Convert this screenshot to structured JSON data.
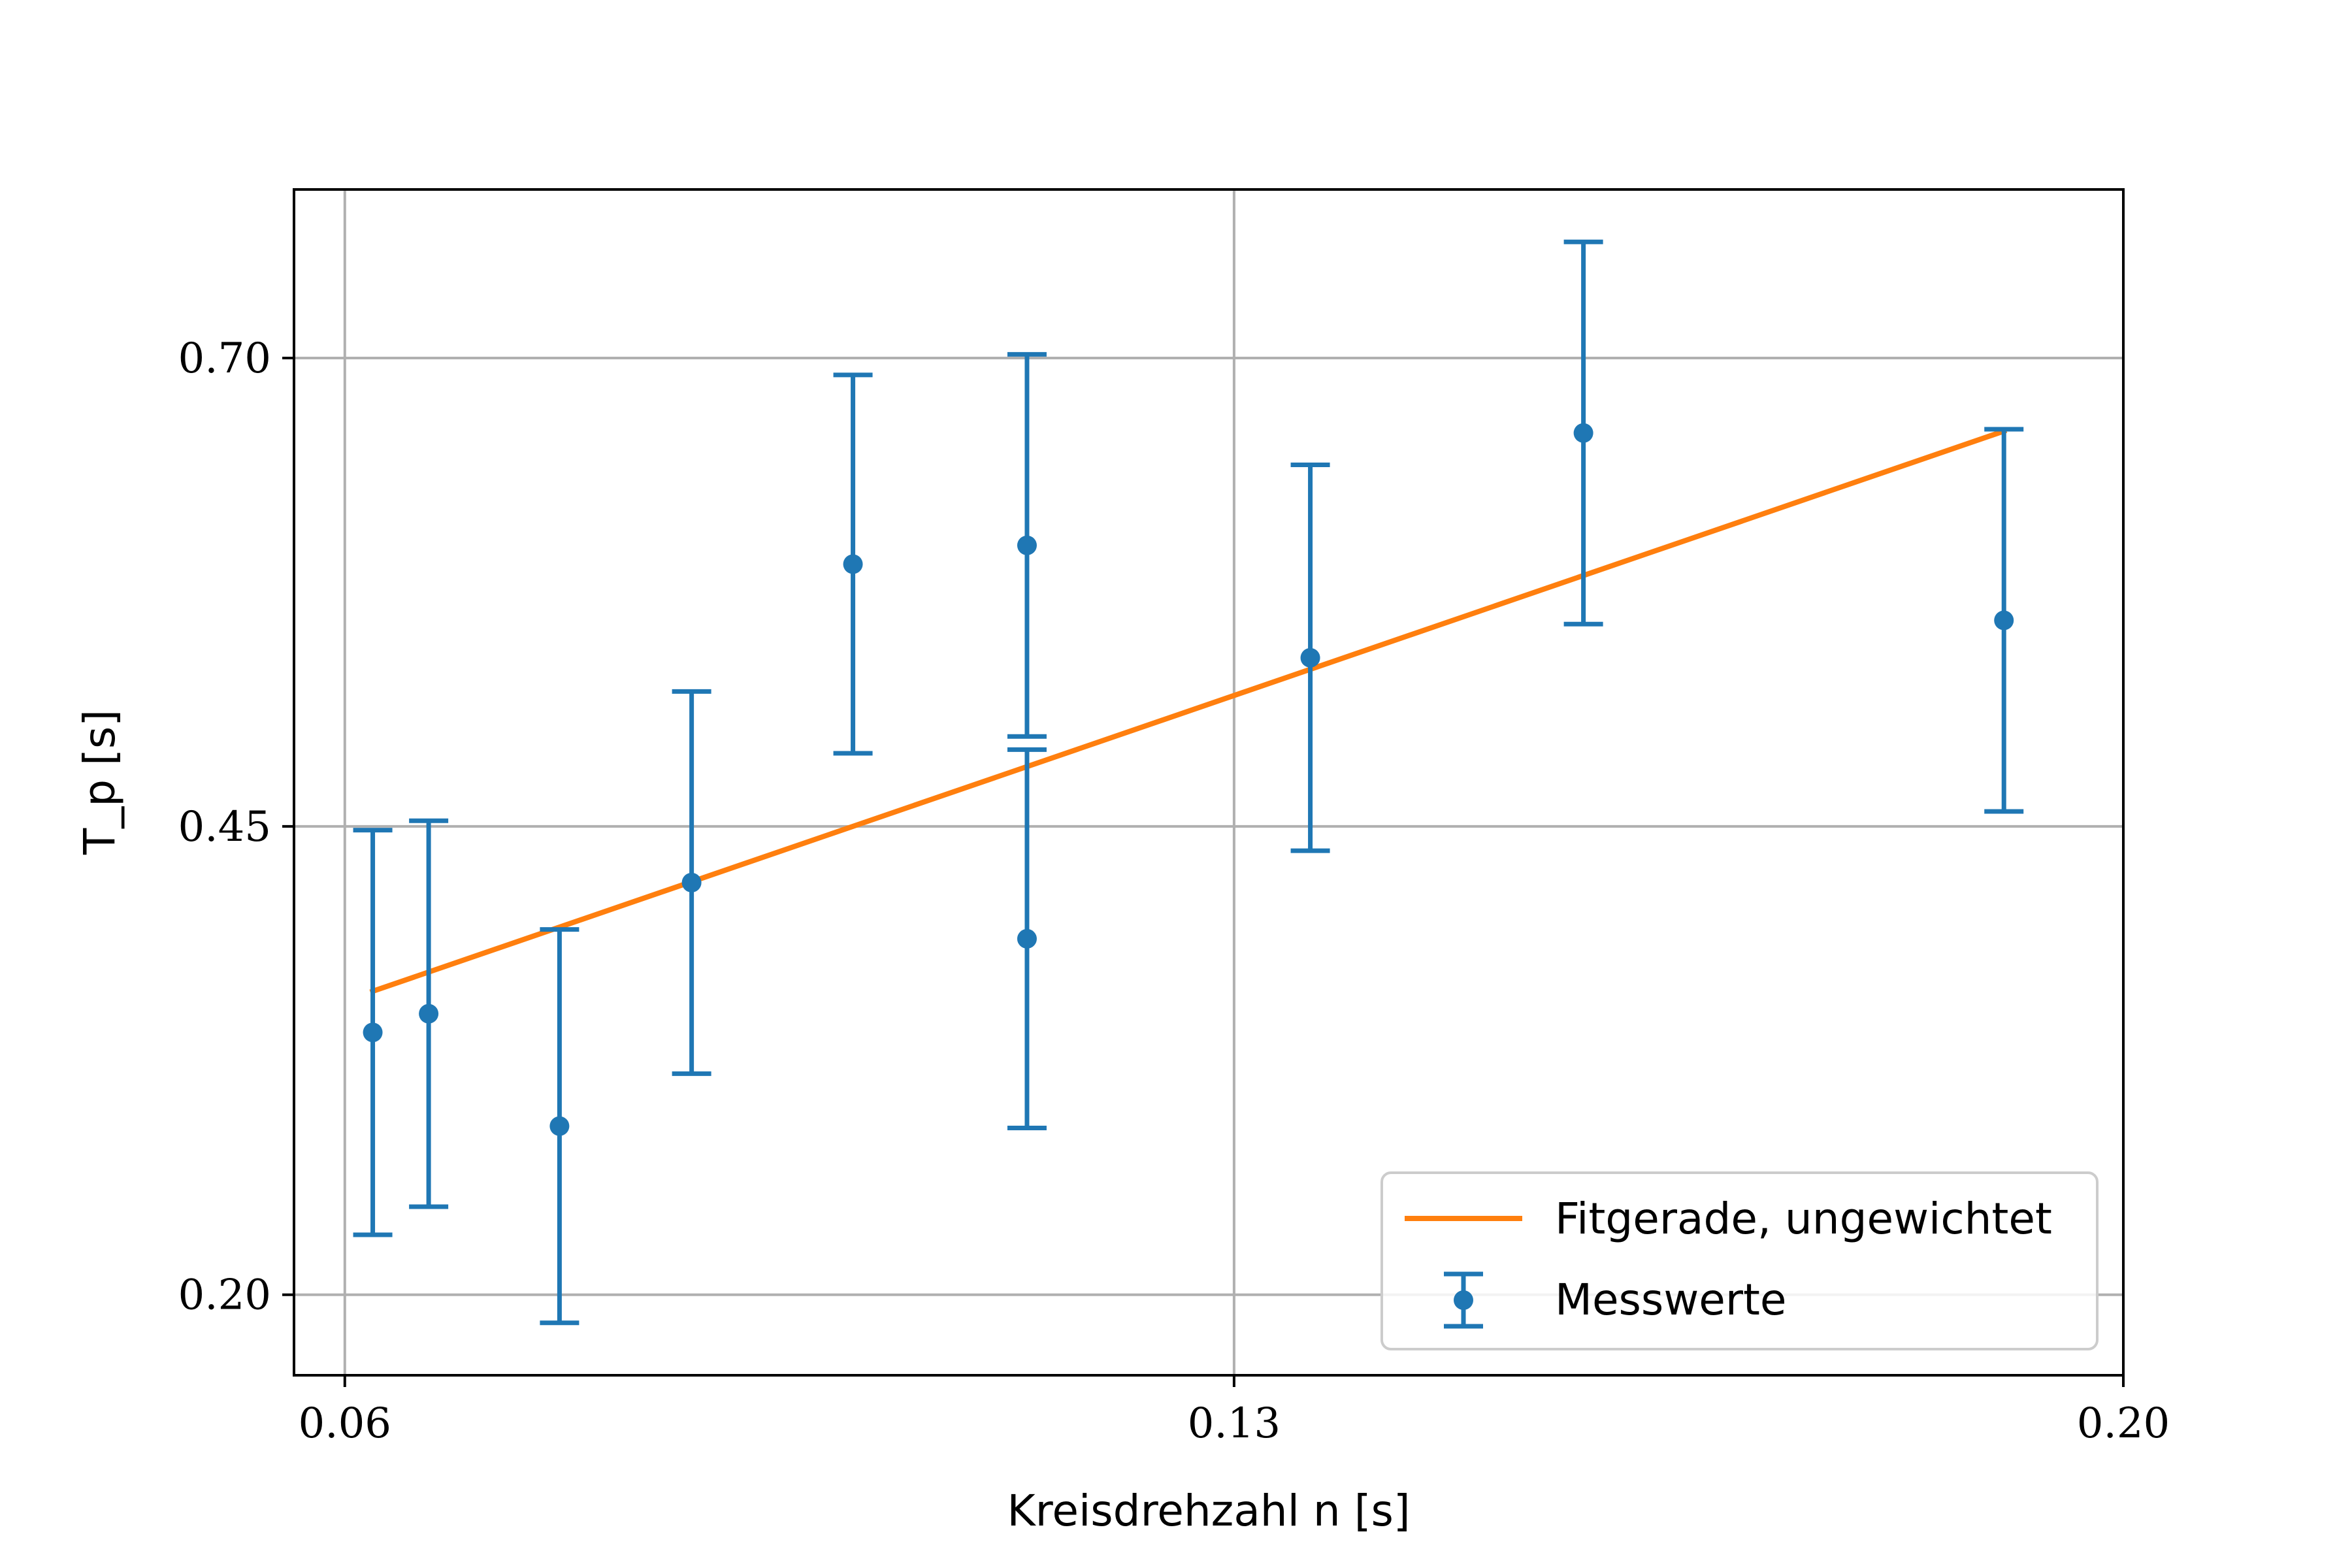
{
  "chart_data": {
    "type": "scatter",
    "xlabel": "Kreisdrehzahl n [s]",
    "ylabel": "T_p [s]",
    "xlim": [
      0.056,
      0.2
    ],
    "ylim": [
      0.157,
      0.79
    ],
    "xticks": [
      "0.06",
      "0.13",
      "0.20"
    ],
    "yticks": [
      "0.20",
      "0.45",
      "0.70"
    ],
    "grid": true,
    "legend_position": "lower-right",
    "series": [
      {
        "name": "Messwerte",
        "kind": "errorbar",
        "color": "#1f77b4",
        "points": [
          {
            "x": 0.0622,
            "y": 0.34,
            "yerr": 0.108
          },
          {
            "x": 0.0666,
            "y": 0.35,
            "yerr": 0.103
          },
          {
            "x": 0.0769,
            "y": 0.29,
            "yerr": 0.105
          },
          {
            "x": 0.0873,
            "y": 0.42,
            "yerr": 0.102
          },
          {
            "x": 0.1,
            "y": 0.59,
            "yerr": 0.101
          },
          {
            "x": 0.1137,
            "y": 0.6,
            "yerr": 0.102
          },
          {
            "x": 0.1137,
            "y": 0.39,
            "yerr": 0.101
          },
          {
            "x": 0.136,
            "y": 0.54,
            "yerr": 0.103
          },
          {
            "x": 0.1575,
            "y": 0.66,
            "yerr": 0.102
          },
          {
            "x": 0.1906,
            "y": 0.56,
            "yerr": 0.102
          }
        ]
      },
      {
        "name": "Fitgerade, ungewichtet",
        "kind": "line",
        "color": "#ff7f0e",
        "x": [
          0.0622,
          0.1906
        ],
        "y": [
          0.362,
          0.661
        ]
      }
    ]
  }
}
